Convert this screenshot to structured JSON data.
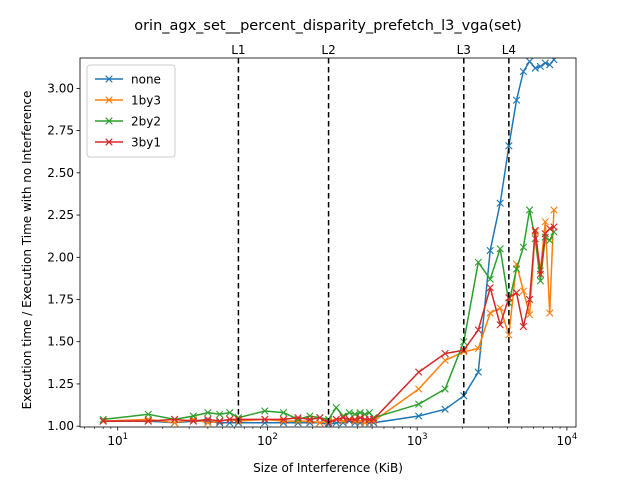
{
  "chart_data": {
    "type": "line",
    "title": "orin_agx_set__percent_disparity_prefetch_l3_vga(set)",
    "xlabel": "Size of Interference (KiB)",
    "ylabel": "Execution time / Execution Time with no Interference",
    "xscale": "log",
    "xlim": [
      5.6,
      11500
    ],
    "ylim": [
      0.995,
      3.18
    ],
    "x_ticks": [
      {
        "value": 10,
        "base": "10",
        "exp": "1"
      },
      {
        "value": 100,
        "base": "10",
        "exp": "2"
      },
      {
        "value": 1000,
        "base": "10",
        "exp": "3"
      },
      {
        "value": 10000,
        "base": "10",
        "exp": "4"
      }
    ],
    "y_ticks": [
      "1.00",
      "1.25",
      "1.50",
      "1.75",
      "2.00",
      "2.25",
      "2.50",
      "2.75",
      "3.00"
    ],
    "legend_position": "top-left",
    "marker": "x",
    "cache_lines": [
      {
        "label": "L1",
        "x": 64
      },
      {
        "label": "L2",
        "x": 256
      },
      {
        "label": "L3",
        "x": 2048
      },
      {
        "label": "L4",
        "x": 4096
      }
    ],
    "series": [
      {
        "name": "none",
        "color": "#1f77b4",
        "points": [
          [
            8,
            1.03
          ],
          [
            16,
            1.03
          ],
          [
            24,
            1.02
          ],
          [
            32,
            1.03
          ],
          [
            40,
            1.03
          ],
          [
            48,
            1.02
          ],
          [
            56,
            1.02
          ],
          [
            64,
            1.02
          ],
          [
            96,
            1.02
          ],
          [
            128,
            1.02
          ],
          [
            160,
            1.02
          ],
          [
            192,
            1.02
          ],
          [
            224,
            1.02
          ],
          [
            256,
            1.01
          ],
          [
            288,
            1.02
          ],
          [
            320,
            1.02
          ],
          [
            352,
            1.03
          ],
          [
            384,
            1.02
          ],
          [
            416,
            1.02
          ],
          [
            448,
            1.02
          ],
          [
            480,
            1.02
          ],
          [
            512,
            1.02
          ],
          [
            1024,
            1.06
          ],
          [
            1536,
            1.1
          ],
          [
            2048,
            1.18
          ],
          [
            2560,
            1.32
          ],
          [
            3072,
            2.04
          ],
          [
            3584,
            2.32
          ],
          [
            4096,
            2.66
          ],
          [
            4608,
            2.93
          ],
          [
            5120,
            3.1
          ],
          [
            5632,
            3.16
          ],
          [
            6144,
            3.12
          ],
          [
            6656,
            3.13
          ],
          [
            7168,
            3.15
          ],
          [
            7680,
            3.14
          ],
          [
            8192,
            3.17
          ]
        ]
      },
      {
        "name": "1by3",
        "color": "#ff7f0e",
        "points": [
          [
            8,
            1.03
          ],
          [
            16,
            1.04
          ],
          [
            24,
            1.02
          ],
          [
            32,
            1.04
          ],
          [
            40,
            1.02
          ],
          [
            48,
            1.03
          ],
          [
            56,
            1.04
          ],
          [
            64,
            1.03
          ],
          [
            96,
            1.04
          ],
          [
            128,
            1.03
          ],
          [
            160,
            1.03
          ],
          [
            192,
            1.03
          ],
          [
            224,
            1.02
          ],
          [
            256,
            1.03
          ],
          [
            288,
            1.04
          ],
          [
            320,
            1.03
          ],
          [
            352,
            1.04
          ],
          [
            384,
            1.03
          ],
          [
            416,
            1.03
          ],
          [
            448,
            1.02
          ],
          [
            480,
            1.03
          ],
          [
            512,
            1.03
          ],
          [
            1024,
            1.22
          ],
          [
            1536,
            1.39
          ],
          [
            2048,
            1.44
          ],
          [
            2560,
            1.46
          ],
          [
            3072,
            1.67
          ],
          [
            3584,
            1.7
          ],
          [
            4096,
            1.54
          ],
          [
            4608,
            1.96
          ],
          [
            5120,
            1.8
          ],
          [
            5632,
            1.66
          ],
          [
            6144,
            2.15
          ],
          [
            6656,
            1.92
          ],
          [
            7168,
            2.21
          ],
          [
            7680,
            1.67
          ],
          [
            8192,
            2.28
          ]
        ]
      },
      {
        "name": "2by2",
        "color": "#2ca02c",
        "points": [
          [
            8,
            1.04
          ],
          [
            16,
            1.07
          ],
          [
            24,
            1.04
          ],
          [
            32,
            1.06
          ],
          [
            40,
            1.08
          ],
          [
            48,
            1.07
          ],
          [
            56,
            1.08
          ],
          [
            64,
            1.05
          ],
          [
            96,
            1.09
          ],
          [
            128,
            1.08
          ],
          [
            160,
            1.04
          ],
          [
            192,
            1.06
          ],
          [
            224,
            1.05
          ],
          [
            256,
            1.04
          ],
          [
            288,
            1.11
          ],
          [
            320,
            1.06
          ],
          [
            352,
            1.08
          ],
          [
            384,
            1.07
          ],
          [
            416,
            1.08
          ],
          [
            448,
            1.07
          ],
          [
            480,
            1.08
          ],
          [
            512,
            1.05
          ],
          [
            1024,
            1.13
          ],
          [
            1536,
            1.22
          ],
          [
            2048,
            1.5
          ],
          [
            2560,
            1.97
          ],
          [
            3072,
            1.87
          ],
          [
            3584,
            2.05
          ],
          [
            4096,
            1.73
          ],
          [
            4608,
            1.93
          ],
          [
            5120,
            2.06
          ],
          [
            5632,
            2.28
          ],
          [
            6144,
            2.11
          ],
          [
            6656,
            1.86
          ],
          [
            7168,
            2.12
          ],
          [
            7680,
            2.1
          ],
          [
            8192,
            2.15
          ]
        ]
      },
      {
        "name": "3by1",
        "color": "#d62728",
        "points": [
          [
            8,
            1.03
          ],
          [
            16,
            1.03
          ],
          [
            24,
            1.04
          ],
          [
            32,
            1.03
          ],
          [
            40,
            1.04
          ],
          [
            48,
            1.03
          ],
          [
            56,
            1.04
          ],
          [
            64,
            1.04
          ],
          [
            96,
            1.04
          ],
          [
            128,
            1.04
          ],
          [
            160,
            1.05
          ],
          [
            192,
            1.04
          ],
          [
            224,
            1.05
          ],
          [
            256,
            1.02
          ],
          [
            288,
            1.04
          ],
          [
            320,
            1.05
          ],
          [
            352,
            1.04
          ],
          [
            384,
            1.04
          ],
          [
            416,
            1.05
          ],
          [
            448,
            1.04
          ],
          [
            480,
            1.04
          ],
          [
            512,
            1.04
          ],
          [
            1024,
            1.32
          ],
          [
            1536,
            1.43
          ],
          [
            2048,
            1.45
          ],
          [
            2560,
            1.57
          ],
          [
            3072,
            1.82
          ],
          [
            3584,
            1.6
          ],
          [
            4096,
            1.76
          ],
          [
            4608,
            1.79
          ],
          [
            5120,
            1.59
          ],
          [
            5632,
            1.75
          ],
          [
            6144,
            2.16
          ],
          [
            6656,
            1.9
          ],
          [
            7168,
            2.14
          ],
          [
            7680,
            2.17
          ],
          [
            8192,
            2.18
          ]
        ]
      }
    ]
  }
}
